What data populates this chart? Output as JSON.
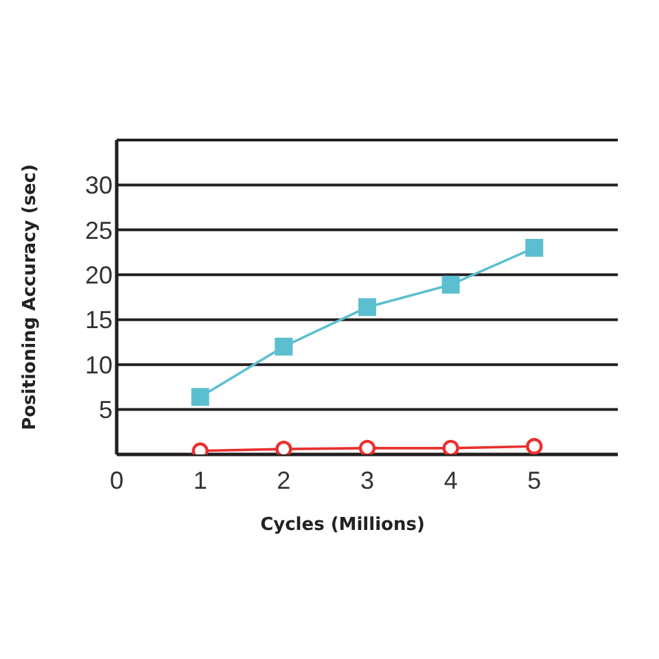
{
  "chart_data": {
    "type": "line",
    "xlabel": "Cycles (Millions)",
    "ylabel": "Positioning Accuracy (sec)",
    "x": [
      1,
      2,
      3,
      4,
      5
    ],
    "series": [
      {
        "color": "#5bbfcf",
        "marker": "square",
        "values": [
          6.4,
          12,
          16.4,
          18.9,
          23
        ]
      },
      {
        "color": "#e8302e",
        "marker": "circle",
        "values": [
          0.4,
          0.6,
          0.7,
          0.7,
          0.9
        ]
      }
    ],
    "xlim": [
      0,
      6
    ],
    "xticks": [
      0,
      1,
      2,
      3,
      4,
      5
    ],
    "ylim": [
      0,
      35
    ],
    "yticks": [
      5,
      10,
      15,
      20,
      25,
      30
    ],
    "grid": "y",
    "line_style": "solid"
  }
}
